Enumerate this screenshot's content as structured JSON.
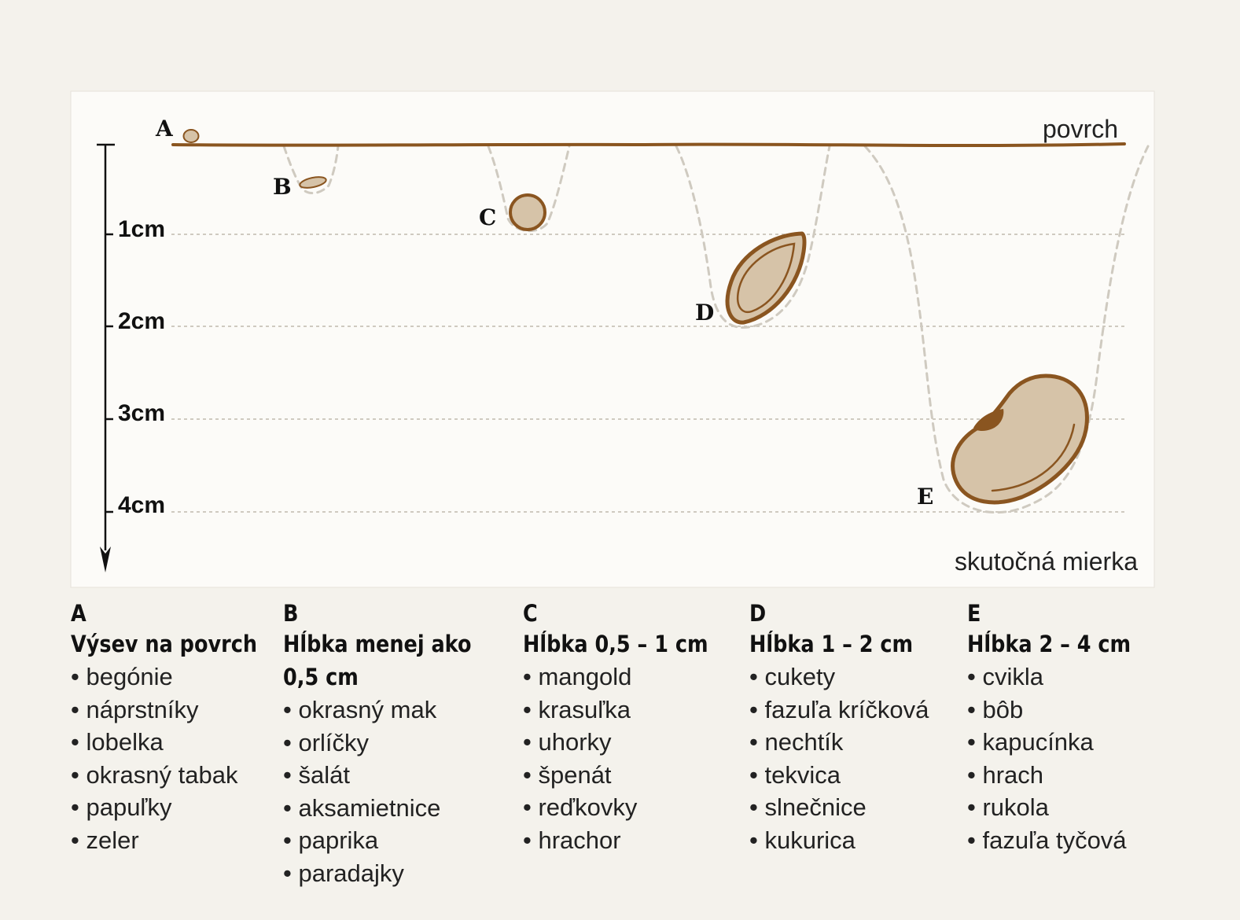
{
  "diagram": {
    "surface_label": "povrch",
    "scale_note": "skutočná mierka",
    "depth_labels": [
      "1cm",
      "2cm",
      "3cm",
      "4cm"
    ],
    "seed_letters": [
      "A",
      "B",
      "C",
      "D",
      "E"
    ],
    "colors": {
      "panel": "#fcfbf8",
      "surface_line": "#8a5520",
      "seed_fill": "#d6c3a8",
      "seed_outline": "#8a5520",
      "guide_line": "#cfcac0"
    }
  },
  "legend": [
    {
      "letter": "A",
      "title": "Výsev na povrch",
      "items": [
        "begónie",
        "náprstníky",
        "lobelka",
        "okrasný tabak",
        "papuľky",
        "zeler"
      ]
    },
    {
      "letter": "B",
      "title": "Hĺbka menej ako\n0,5 cm",
      "items": [
        "okrasný mak",
        "orlíčky",
        "šalát",
        "aksamietnice",
        "paprika",
        "paradajky"
      ]
    },
    {
      "letter": "C",
      "title": "Hĺbka 0,5 – 1 cm",
      "items": [
        "mangold",
        "krasuľka",
        "uhorky",
        "špenát",
        "reďkovky",
        "hrachor"
      ]
    },
    {
      "letter": "D",
      "title": "Hĺbka 1 – 2 cm",
      "items": [
        "cukety",
        "fazuľa kríčková",
        "nechtík",
        "tekvica",
        "slnečnice",
        "kukurica"
      ]
    },
    {
      "letter": "E",
      "title": "Hĺbka 2 – 4 cm",
      "items": [
        "cvikla",
        "bôb",
        "kapucínka",
        "hrach",
        "rukola",
        "fazuľa tyčová"
      ]
    }
  ]
}
